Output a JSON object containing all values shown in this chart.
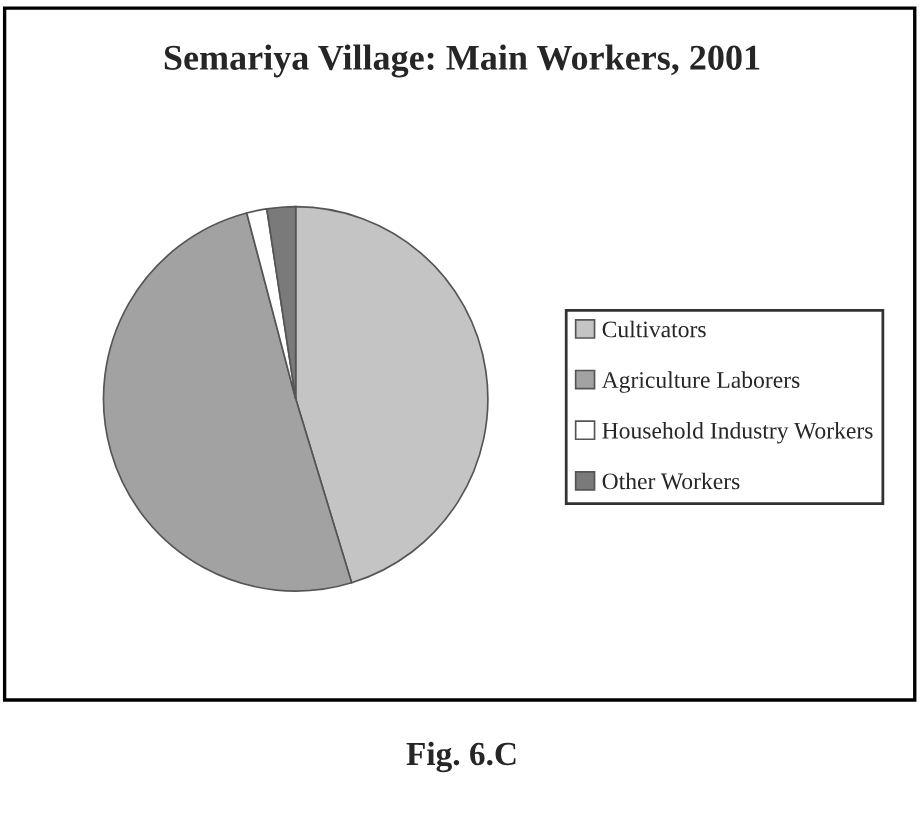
{
  "chart_data": {
    "type": "pie",
    "title": "Semariya Village: Main Workers, 2001",
    "categories": [
      "Cultivators",
      "Agriculture Laborers",
      "Household Industry Workers",
      "Other Workers"
    ],
    "values": [
      45.3,
      50.6,
      1.7,
      2.4
    ],
    "colors": [
      "#c4c4c4",
      "#a2a2a2",
      "#ffffff",
      "#7a7a7a"
    ],
    "legend": "right",
    "annotations": [
      "Fig. 6.C"
    ]
  }
}
